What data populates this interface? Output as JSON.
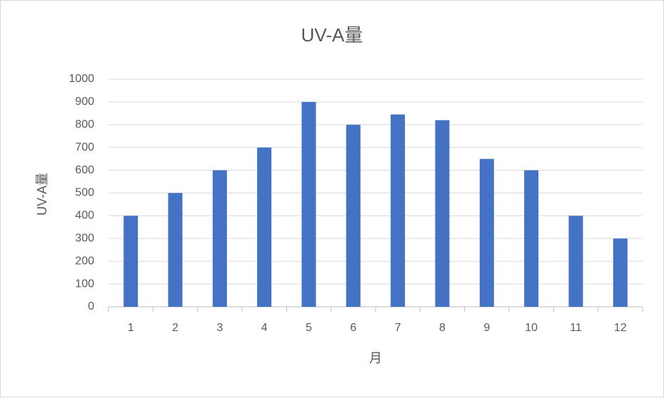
{
  "chart_data": {
    "type": "bar",
    "title": "UV-A量",
    "x_label": "月",
    "y_label": "UV-A量",
    "categories": [
      "1",
      "2",
      "3",
      "4",
      "5",
      "6",
      "7",
      "8",
      "9",
      "10",
      "11",
      "12"
    ],
    "values": [
      400,
      500,
      600,
      700,
      900,
      800,
      845,
      820,
      650,
      600,
      400,
      300
    ],
    "color": "#4472c4",
    "ylim": [
      0,
      1000
    ],
    "yticks": [
      0,
      100,
      200,
      300,
      400,
      500,
      600,
      700,
      800,
      900,
      1000
    ],
    "grid": true
  }
}
